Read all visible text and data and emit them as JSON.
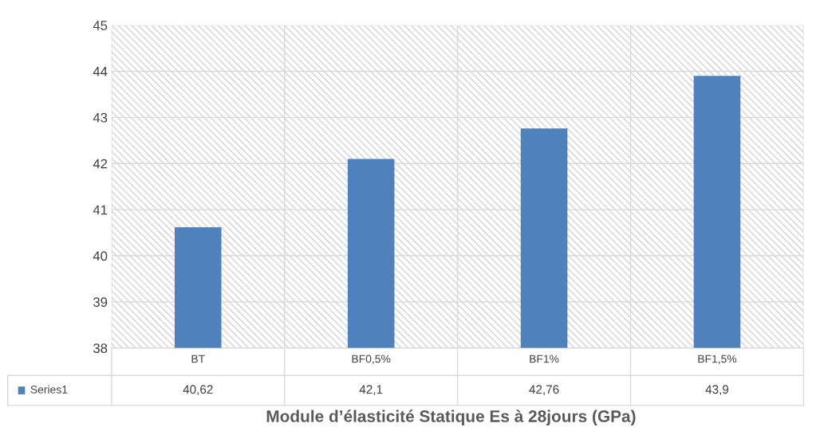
{
  "chart_data": {
    "type": "bar",
    "title": "Module d’élasticité Statique Es à 28jours (GPa)",
    "categories": [
      "BT",
      "BF0,5%",
      "BF1%",
      "BF1,5%"
    ],
    "series": [
      {
        "name": "Series1",
        "color": "#4f81bd",
        "values": [
          40.62,
          42.1,
          42.76,
          43.9
        ]
      }
    ],
    "value_labels": [
      "40,62",
      "42,1",
      "42,76",
      "43,9"
    ],
    "ylim": [
      38,
      45
    ],
    "yticks": [
      38,
      39,
      40,
      41,
      42,
      43,
      44,
      45
    ],
    "grid": true,
    "legend": "bottom"
  }
}
